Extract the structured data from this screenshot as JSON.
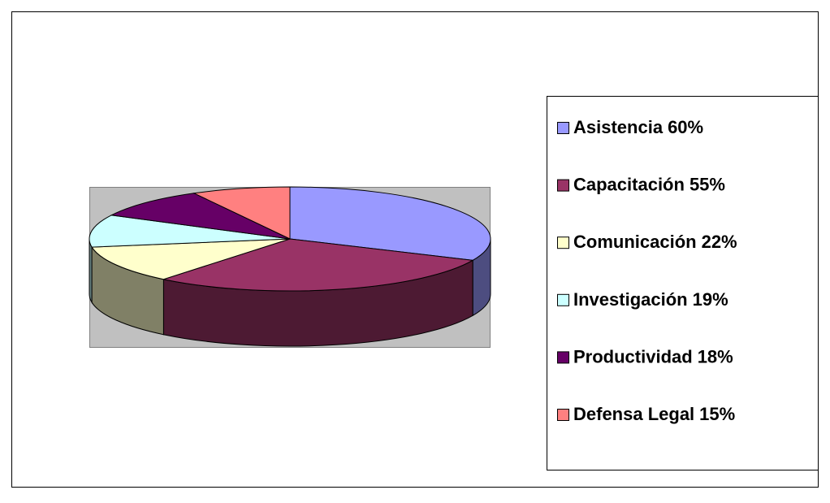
{
  "chart_data": {
    "type": "pie",
    "categories": [
      "Asistencia",
      "Capacitación",
      "Comunicación",
      "Investigación",
      "Productividad",
      "Defensa Legal"
    ],
    "values": [
      60,
      55,
      22,
      19,
      18,
      15
    ],
    "value_labels": [
      "60%",
      "55%",
      "22%",
      "19%",
      "18%",
      "15%"
    ],
    "colors": [
      "#9999ff",
      "#993366",
      "#ffffcc",
      "#ccffff",
      "#660066",
      "#ff8080"
    ],
    "legend": "right"
  }
}
